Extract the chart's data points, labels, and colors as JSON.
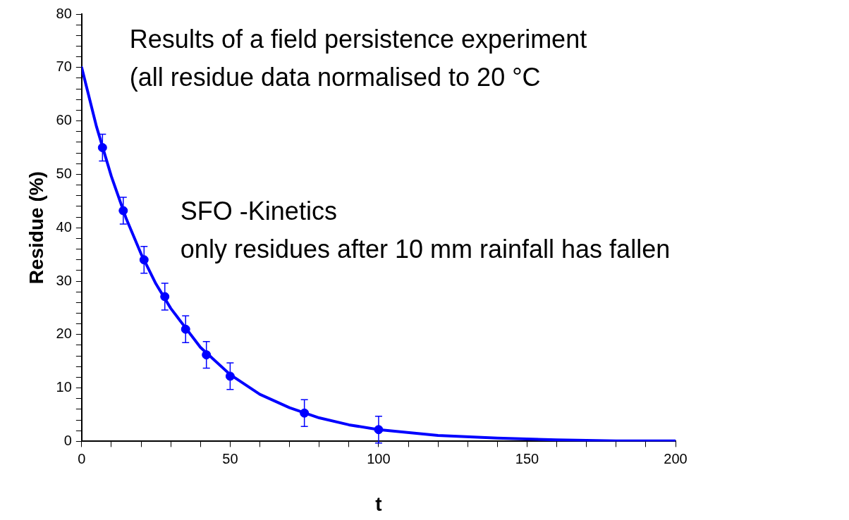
{
  "chart_data": {
    "type": "scatter",
    "xlabel": "t",
    "ylabel": "Residue (%)",
    "annotations": [
      "Results of a field persistence experiment",
      "(all residue data normalised to 20 °C",
      "SFO -Kinetics",
      "only residues after 10 mm rainfall has fallen"
    ],
    "series": [
      {
        "color": "#0000ff",
        "marker": "circle",
        "x": [
          7,
          14,
          21,
          28,
          35,
          42,
          50,
          75,
          100
        ],
        "values": [
          55,
          43.2,
          34,
          27.1,
          21,
          16.2,
          12.2,
          5.3,
          2.2
        ],
        "errors": [
          2.5,
          2.5,
          2.5,
          2.5,
          2.5,
          2.5,
          2.5,
          2.5,
          2.5
        ]
      },
      {
        "type": "line",
        "color": "#0000ff",
        "marker": "none",
        "line_style": "solid",
        "x": [
          0,
          5,
          10,
          15,
          20,
          25,
          30,
          40,
          50,
          60,
          70,
          80,
          90,
          100,
          120,
          140,
          160,
          180,
          200
        ],
        "values": [
          70,
          58.9,
          49.6,
          41.7,
          35.1,
          29.5,
          24.9,
          17.6,
          12.5,
          8.8,
          6.3,
          4.4,
          3.1,
          2.2,
          1.1,
          0.6,
          0.3,
          0.1,
          0.1
        ]
      }
    ],
    "xlim": [
      0,
      200
    ],
    "xticks": [
      0,
      {
        "value": 10,
        "label": null
      },
      {
        "value": 20,
        "label": null
      },
      {
        "value": 30,
        "label": null
      },
      {
        "value": 40,
        "label": null
      },
      50,
      {
        "value": 60,
        "label": null
      },
      {
        "value": 70,
        "label": null
      },
      {
        "value": 80,
        "label": null
      },
      {
        "value": 90,
        "label": null
      },
      100,
      {
        "value": 110,
        "label": null
      },
      {
        "value": 120,
        "label": null
      },
      {
        "value": 130,
        "label": null
      },
      {
        "value": 140,
        "label": null
      },
      150,
      {
        "value": 160,
        "label": null
      },
      {
        "value": 170,
        "label": null
      },
      {
        "value": 180,
        "label": null
      },
      {
        "value": 190,
        "label": null
      },
      200
    ],
    "ylim": [
      0,
      80
    ],
    "yticks": [
      0,
      {
        "value": 2,
        "label": null
      },
      {
        "value": 4,
        "label": null
      },
      {
        "value": 6,
        "label": null
      },
      {
        "value": 8,
        "label": null
      },
      10,
      {
        "value": 12,
        "label": null
      },
      {
        "value": 14,
        "label": null
      },
      {
        "value": 16,
        "label": null
      },
      {
        "value": 18,
        "label": null
      },
      20,
      {
        "value": 22,
        "label": null
      },
      {
        "value": 24,
        "label": null
      },
      {
        "value": 26,
        "label": null
      },
      {
        "value": 28,
        "label": null
      },
      30,
      {
        "value": 32,
        "label": null
      },
      {
        "value": 34,
        "label": null
      },
      {
        "value": 36,
        "label": null
      },
      {
        "value": 38,
        "label": null
      },
      40,
      {
        "value": 42,
        "label": null
      },
      {
        "value": 44,
        "label": null
      },
      {
        "value": 46,
        "label": null
      },
      {
        "value": 48,
        "label": null
      },
      50,
      {
        "value": 52,
        "label": null
      },
      {
        "value": 54,
        "label": null
      },
      {
        "value": 56,
        "label": null
      },
      {
        "value": 58,
        "label": null
      },
      60,
      {
        "value": 62,
        "label": null
      },
      {
        "value": 64,
        "label": null
      },
      {
        "value": 66,
        "label": null
      },
      {
        "value": 68,
        "label": null
      },
      70,
      {
        "value": 72,
        "label": null
      },
      {
        "value": 74,
        "label": null
      },
      {
        "value": 76,
        "label": null
      },
      {
        "value": 78,
        "label": null
      },
      80
    ],
    "grid": false,
    "legend": false
  }
}
